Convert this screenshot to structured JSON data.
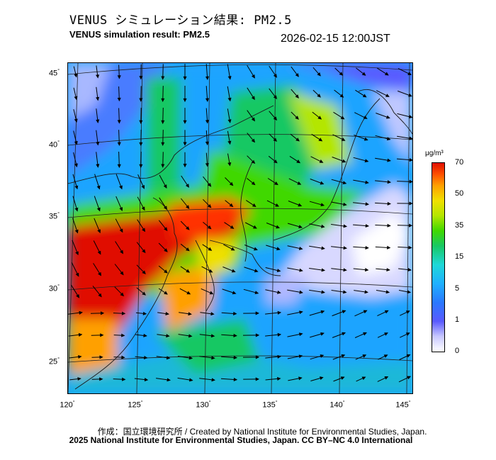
{
  "header": {
    "title_ja": "VENUS シミュレーション結果: PM2.5",
    "title_en": "VENUS simulation result: PM2.5",
    "timestamp": "2026-02-15 12:00JST"
  },
  "map": {
    "lat_labels": [
      "45",
      "40",
      "35",
      "30",
      "25"
    ],
    "lon_labels": [
      "120",
      "125",
      "130",
      "135",
      "140",
      "145"
    ],
    "degree_symbol": "°"
  },
  "colorbar": {
    "unit": "μg/m³",
    "labels": [
      "70",
      "50",
      "35",
      "15",
      "5",
      "1",
      "0"
    ],
    "colors": {
      "high": "#e01000",
      "orange": "#ffa000",
      "yellow": "#f0e000",
      "green": "#19c864",
      "cyan": "#1fd8d8",
      "blue": "#2a78ff",
      "lowblue": "#5a5aff",
      "zero": "#ffffff"
    }
  },
  "footer": {
    "credit_ja": "作成：国立環境研究所 / Created by National Institute for Environmental Studies, Japan.",
    "credit_en": "2025 National Institute for Environmental Studies, Japan. CC BY–NC 4.0 International"
  }
}
